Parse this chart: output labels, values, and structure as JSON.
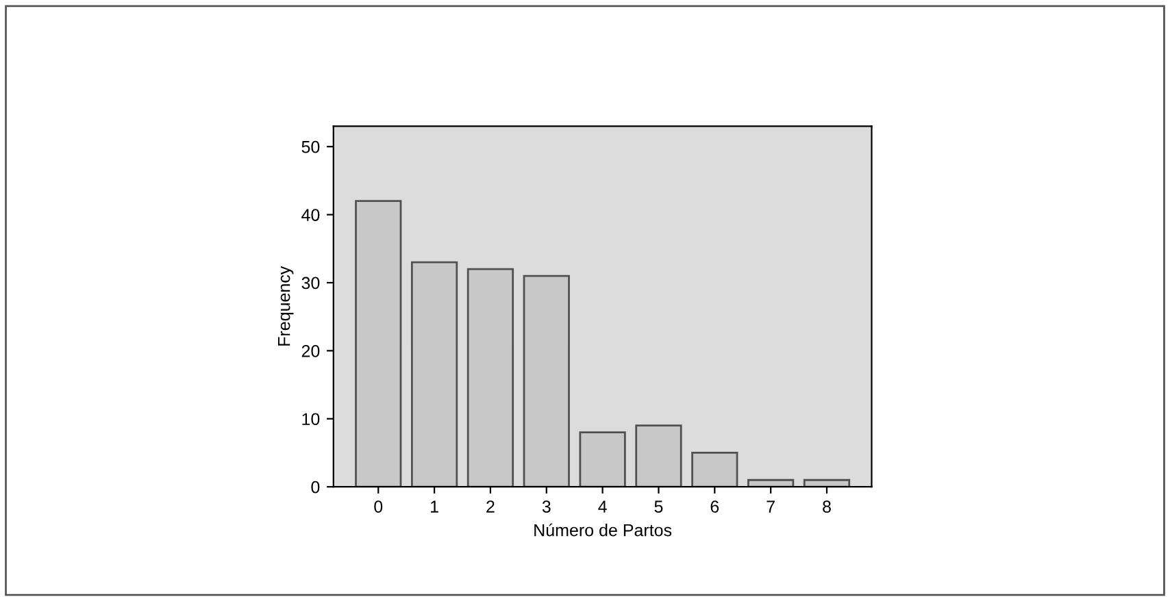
{
  "chart_data": {
    "type": "bar",
    "xlabel": "Número de Partos",
    "ylabel": "Frequency",
    "categories": [
      "0",
      "1",
      "2",
      "3",
      "4",
      "5",
      "6",
      "7",
      "8"
    ],
    "values": [
      42,
      33,
      32,
      31,
      8,
      9,
      5,
      1,
      1
    ],
    "color": "#c8c8c8",
    "ylim": [
      0,
      53
    ],
    "yticks": [
      0,
      10,
      20,
      30,
      40,
      50
    ],
    "grid": false
  }
}
